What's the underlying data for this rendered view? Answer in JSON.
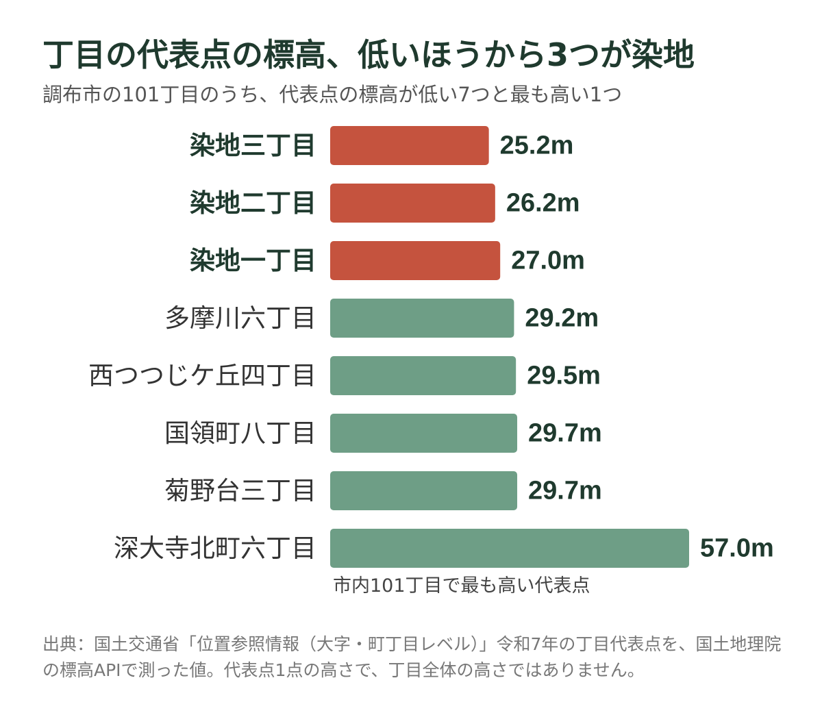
{
  "title": "丁目の代表点の標高、低いほうから3つが染地",
  "subtitle": "調布市の101丁目のうち、代表点の標高が低い7つと最も高い1つ",
  "annotation": "市内101丁目で最も高い代表点",
  "source": "出典：国土交通省「位置参照情報（大字・町丁目レベル）」令和7年の丁目代表点を、国土地理院の標高APIで測った値。代表点1点の高さで、丁目全体の高さではありません。",
  "colors": {
    "highlight": "#c5533e",
    "base": "#6e9e86",
    "text": "#1f3a2e"
  },
  "chart_data": {
    "type": "bar",
    "orientation": "horizontal",
    "unit": "m",
    "categories": [
      "染地三丁目",
      "染地二丁目",
      "染地一丁目",
      "多摩川六丁目",
      "西つつじケ丘四丁目",
      "国領町八丁目",
      "菊野台三丁目",
      "深大寺北町六丁目"
    ],
    "values": [
      25.2,
      26.2,
      27.0,
      29.2,
      29.5,
      29.7,
      29.7,
      57.0
    ],
    "value_labels": [
      "25.2m",
      "26.2m",
      "27.0m",
      "29.2m",
      "29.5m",
      "29.7m",
      "29.7m",
      "57.0m"
    ],
    "highlighted": [
      true,
      true,
      true,
      false,
      false,
      false,
      false,
      false
    ],
    "xlim": [
      0,
      57.0
    ],
    "grid": false,
    "legend": "none"
  }
}
